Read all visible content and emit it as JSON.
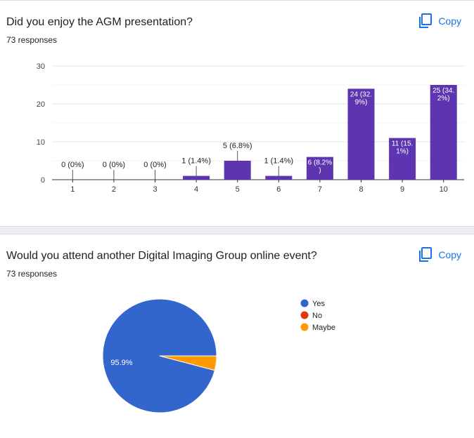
{
  "questions": [
    {
      "title": "Did you enjoy the AGM presentation?",
      "responses": "73 responses",
      "copy_label": "Copy",
      "copy_icon": "copy-icon"
    },
    {
      "title": "Would you attend another Digital Imaging Group online event?",
      "responses": "73 responses",
      "copy_label": "Copy",
      "copy_icon": "copy-icon"
    }
  ],
  "colors": {
    "bar": "#5e35b1",
    "yes": "#3366cc",
    "no": "#dc3912",
    "maybe": "#ff9900",
    "accent": "#1a73e8"
  },
  "chart_data": [
    {
      "type": "bar",
      "categories": [
        "1",
        "2",
        "3",
        "4",
        "5",
        "6",
        "7",
        "8",
        "9",
        "10"
      ],
      "values": [
        0,
        0,
        0,
        1,
        5,
        1,
        6,
        24,
        11,
        25
      ],
      "data_labels": [
        "0 (0%)",
        "0 (0%)",
        "0 (0%)",
        "1 (1.4%)",
        "5 (6.8%)",
        "1 (1.4%)",
        "6 (8.2%)",
        "24 (32.9%)",
        "11 (15.1%)",
        "25 (34.2%)"
      ],
      "yticks": [
        "0",
        "10",
        "20",
        "30"
      ],
      "ylim": [
        0,
        30
      ],
      "grid": true
    },
    {
      "type": "pie",
      "labels": [
        "Yes",
        "No",
        "Maybe"
      ],
      "values": [
        95.9,
        0,
        4.1
      ],
      "slice_labels": [
        "95.9%"
      ],
      "legend_position": "right"
    }
  ]
}
